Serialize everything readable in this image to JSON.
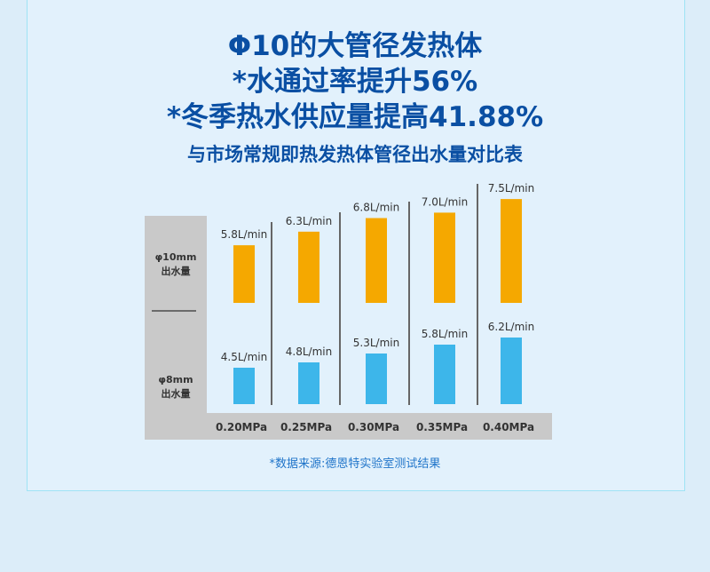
{
  "header": {
    "line1": "Φ10的大管径发热体",
    "line2": "*水通过率提升56%",
    "line3": "*冬季热水供应量提高41.88%",
    "subtitle": "与市场常规即热发热体管径出水量对比表"
  },
  "chart_data": {
    "type": "bar",
    "title": "与市场常规即热发热体管径出水量对比表",
    "categories": [
      "0.20MPa",
      "0.25MPa",
      "0.30MPa",
      "0.35MPa",
      "0.40MPa"
    ],
    "series": [
      {
        "name": "φ10mm 出水量",
        "name_line1": "φ10mm",
        "name_line2": "出水量",
        "color": "#f5a800",
        "values": [
          5.8,
          6.3,
          6.8,
          7.0,
          7.5
        ],
        "labels": [
          "5.8L/min",
          "6.3L/min",
          "6.8L/min",
          "7.0L/min",
          "7.5L/min"
        ]
      },
      {
        "name": "φ8mm 出水量",
        "name_line1": "φ8mm",
        "name_line2": "出水量",
        "color": "#3db6ea",
        "values": [
          4.5,
          4.8,
          5.3,
          5.8,
          6.2
        ],
        "labels": [
          "4.5L/min",
          "4.8L/min",
          "5.3L/min",
          "5.8L/min",
          "6.2L/min"
        ]
      }
    ],
    "unit": "L/min",
    "grid": false
  },
  "footer": {
    "source": "*数据来源:德恩特实验室测试结果"
  }
}
